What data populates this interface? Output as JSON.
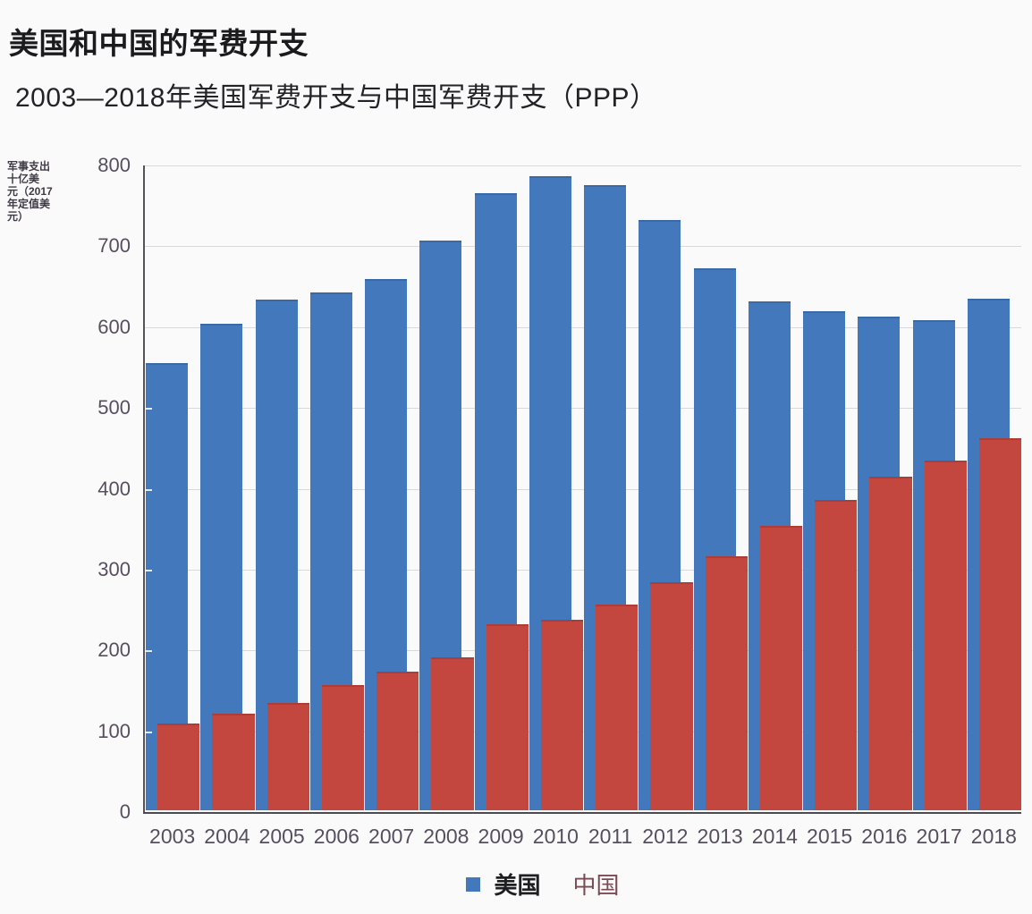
{
  "header": {
    "title": "美国和中国的军费开支",
    "subtitle": "2003—2018年美国军费开支与中国军费开支（PPP）"
  },
  "chart_data": {
    "type": "bar",
    "title": "美国和中国的军费开支",
    "subtitle": "2003—2018年美国军费开支与中国军费开支（PPP）",
    "categories": [
      "2003",
      "2004",
      "2005",
      "2006",
      "2007",
      "2008",
      "2009",
      "2010",
      "2011",
      "2012",
      "2013",
      "2014",
      "2015",
      "2016",
      "2017",
      "2018"
    ],
    "series": [
      {
        "name": "美国",
        "color": "#4478bc",
        "values": [
          553,
          602,
          632,
          641,
          657,
          705,
          763,
          784,
          774,
          730,
          671,
          630,
          617,
          611,
          606,
          633
        ]
      },
      {
        "name": "中国",
        "color": "#c3463f",
        "values": [
          107,
          119,
          133,
          155,
          172,
          189,
          230,
          236,
          254,
          282,
          314,
          352,
          384,
          413,
          433,
          460
        ]
      }
    ],
    "ylabel": "军事支出十亿美元（2017年定值美元）",
    "ylabel_lines": [
      "军事支出",
      "十亿美",
      "元（2017",
      "年定值美",
      "元）"
    ],
    "xlabel": "",
    "y_ticks": [
      0,
      100,
      200,
      300,
      400,
      500,
      600,
      700,
      800
    ],
    "ylim": [
      0,
      800
    ],
    "grid": true,
    "legend_position": "bottom"
  },
  "legend": {
    "us_label": "美国",
    "cn_label": "中国"
  },
  "colors": {
    "us_bar": "#4478bc",
    "cn_bar": "#c3463f",
    "gridline": "#d9d9db",
    "axis": "#55525a",
    "tick_text": "#564f5e",
    "title_text": "#1b1b1d",
    "cn_legend_text": "#7b4b54"
  }
}
